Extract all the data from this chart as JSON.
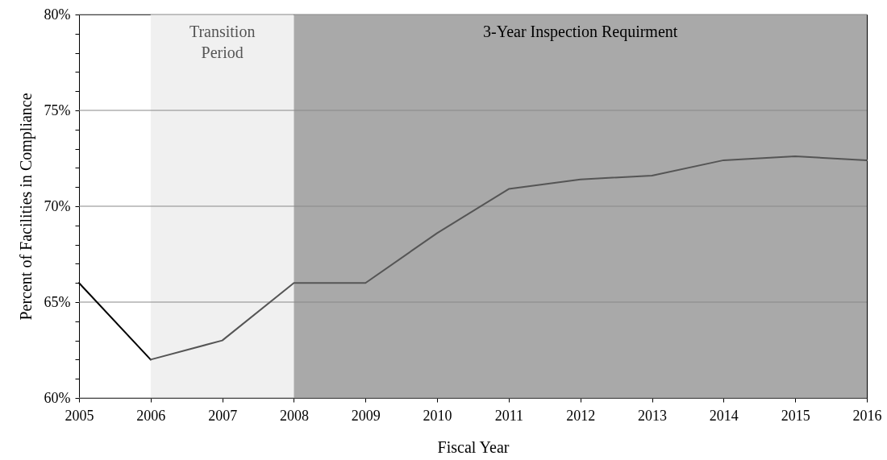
{
  "chart_data": {
    "type": "line",
    "xlabel": "Fiscal Year",
    "ylabel": "Percent of Facilities in Compliance",
    "xlim": [
      2005,
      2016
    ],
    "xticks": [
      2005,
      2006,
      2007,
      2008,
      2009,
      2010,
      2011,
      2012,
      2013,
      2014,
      2015,
      2016
    ],
    "ylim": [
      60,
      80
    ],
    "yticks": [
      {
        "value": 60,
        "label": "60%"
      },
      {
        "value": 61,
        "label": null
      },
      {
        "value": 62,
        "label": null
      },
      {
        "value": 63,
        "label": null
      },
      {
        "value": 64,
        "label": null
      },
      {
        "value": 65,
        "label": "65%"
      },
      {
        "value": 66,
        "label": null
      },
      {
        "value": 67,
        "label": null
      },
      {
        "value": 68,
        "label": null
      },
      {
        "value": 69,
        "label": null
      },
      {
        "value": 70,
        "label": "70%"
      },
      {
        "value": 71,
        "label": null
      },
      {
        "value": 72,
        "label": null
      },
      {
        "value": 73,
        "label": null
      },
      {
        "value": 74,
        "label": null
      },
      {
        "value": 75,
        "label": "75%"
      },
      {
        "value": 76,
        "label": null
      },
      {
        "value": 77,
        "label": null
      },
      {
        "value": 78,
        "label": null
      },
      {
        "value": 79,
        "label": null
      },
      {
        "value": 80,
        "label": "80%"
      }
    ],
    "grid": "y",
    "marker": "none",
    "line_style": "solid",
    "bands": [
      {
        "axis": "x",
        "from": 2006,
        "to": 2008,
        "label": "Transition Period",
        "color": "#f0f0f0"
      },
      {
        "axis": "x",
        "from": 2008,
        "to": 2016,
        "label": "3-Year Inspection Requirment",
        "color": "#a9a9a9"
      }
    ],
    "series": [
      {
        "color": "#000000",
        "x": [
          2005,
          2006
        ],
        "values": [
          66,
          62
        ]
      },
      {
        "color": "#555555",
        "x": [
          2006,
          2007,
          2008,
          2009,
          2010,
          2011,
          2012,
          2013,
          2014,
          2015,
          2016
        ],
        "values": [
          62,
          63,
          66,
          66,
          68.6,
          70.9,
          71.4,
          71.6,
          72.4,
          72.6,
          72.4
        ]
      }
    ]
  }
}
